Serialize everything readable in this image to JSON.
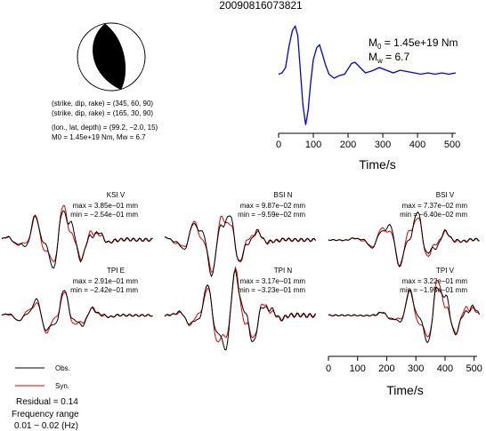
{
  "title": "20090816073821",
  "mechanism": {
    "np1": "(strike, dip, rake) = (345, 60, 90)",
    "np2": "(strike, dip, rake) = (165, 30, 90)",
    "location": "(lon., lat, depth) = (99.2, −2.0, 15)",
    "moment_line": "M0 = 1.45e+19 Nm, Mw = 6.7"
  },
  "stf": {
    "m0": "1.45e+19 Nm",
    "mw": "6.7",
    "xlabel": "Time/s"
  },
  "legend": {
    "obs": "Obs.",
    "syn": "Syn.",
    "residual": "Residual = 0.14",
    "freq_title": "Frequency range",
    "freq_value": "0.01 − 0.02 (Hz)"
  },
  "colors": {
    "obs": "#000000",
    "syn": "#e00000",
    "stf": "#0000dd"
  },
  "chart_data": [
    {
      "type": "line",
      "title": "",
      "xlabel": "Time/s",
      "ylabel": "",
      "xlim": [
        0,
        510
      ],
      "ticks": [
        0,
        100,
        200,
        300,
        400,
        500
      ],
      "series": [
        {
          "name": "source time function",
          "x": [
            0,
            10,
            20,
            30,
            40,
            48,
            55,
            62,
            70,
            78,
            85,
            92,
            100,
            110,
            118,
            125,
            135,
            145,
            160,
            175,
            190,
            200,
            210,
            220,
            235,
            250,
            270,
            290,
            310,
            330,
            350,
            370,
            390,
            410,
            430,
            450,
            470,
            490,
            510
          ],
          "y": [
            0.05,
            0.1,
            0.3,
            1.1,
            1.7,
            1.85,
            1.5,
            0.3,
            -1.1,
            -1.85,
            -1.3,
            -0.3,
            0.6,
            1.05,
            1.15,
            0.85,
            0.4,
            0.05,
            -0.1,
            0.0,
            0.05,
            0.25,
            0.45,
            0.5,
            0.3,
            0.1,
            0.18,
            0.3,
            0.2,
            0.1,
            0.2,
            0.15,
            0.1,
            0.05,
            0.1,
            0.05,
            0.1,
            0.05,
            0.1
          ]
        }
      ]
    },
    {
      "type": "line",
      "xlabel": "Time/s",
      "xlim": [
        0,
        510
      ],
      "ticks": [
        0,
        100,
        200,
        300,
        400,
        500
      ],
      "panels": [
        {
          "label": "KSI V",
          "max": "max = 3.85e−01 mm",
          "min": "min = −2.54e−01 mm"
        },
        {
          "label": "BSI N",
          "max": "max = 9.87e−02 mm",
          "min": "min = −9.59e−02 mm"
        },
        {
          "label": "BSI V",
          "max": "max = 7.37e−02 mm",
          "min": "min = −6.40e−02 mm"
        },
        {
          "label": "TPI E",
          "max": "max = 2.91e−01 mm",
          "min": "min = −2.42e−01 mm"
        },
        {
          "label": "TPI N",
          "max": "max = 3.17e−01 mm",
          "min": "min = −3.23e−01 mm"
        },
        {
          "label": "TPI V",
          "max": "max = 3.22e−01 mm",
          "min": "min = −1.95e−01 mm"
        }
      ]
    }
  ]
}
